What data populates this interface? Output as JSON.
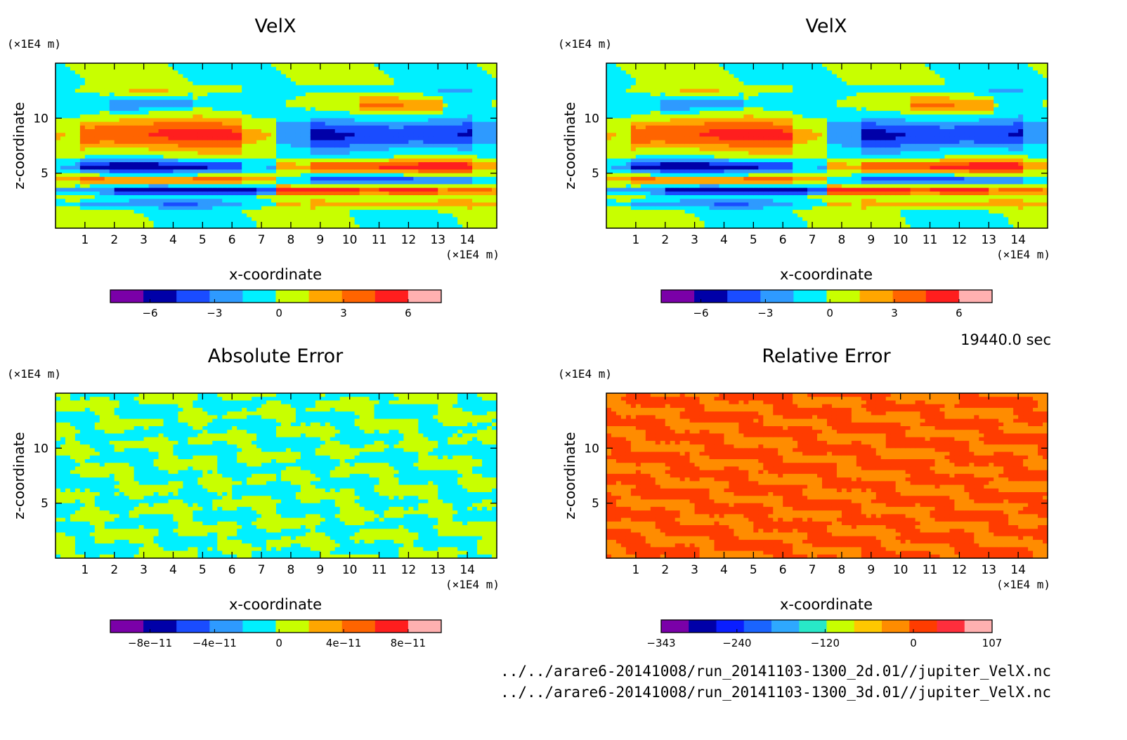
{
  "units_label": "(×1E4 m)",
  "time_label": "19440.0 sec",
  "file_paths": [
    "../../arare6-20141008/run_20141103-1300_2d.01//jupiter_VelX.nc",
    "../../arare6-20141008/run_20141103-1300_3d.01//jupiter_VelX.nc"
  ],
  "chart_data": [
    {
      "type": "heatmap",
      "title": "VelX",
      "xlabel": "x-coordinate",
      "ylabel": "z-coordinate",
      "xlim": [
        0,
        15
      ],
      "ylim": [
        0,
        15
      ],
      "x_ticks": [
        1,
        2,
        3,
        4,
        5,
        6,
        7,
        8,
        9,
        10,
        11,
        12,
        13,
        14
      ],
      "y_ticks": [
        5,
        10
      ],
      "colorbar": {
        "colors": [
          "#7a00a8",
          "#0000a8",
          "#1a4cff",
          "#2e9aff",
          "#00f0ff",
          "#c8ff00",
          "#ffa600",
          "#ff6400",
          "#ff1e1e",
          "#ffb0b0"
        ],
        "tick_values": [
          -6,
          -3,
          0,
          3,
          6
        ],
        "tick_labels": [
          "−6",
          "−3",
          "0",
          "3",
          "6"
        ]
      }
    },
    {
      "type": "heatmap",
      "title": "VelX",
      "xlabel": "x-coordinate",
      "ylabel": "z-coordinate",
      "xlim": [
        0,
        15
      ],
      "ylim": [
        0,
        15
      ],
      "x_ticks": [
        1,
        2,
        3,
        4,
        5,
        6,
        7,
        8,
        9,
        10,
        11,
        12,
        13,
        14
      ],
      "y_ticks": [
        5,
        10
      ],
      "colorbar": {
        "colors": [
          "#7a00a8",
          "#0000a8",
          "#1a4cff",
          "#2e9aff",
          "#00f0ff",
          "#c8ff00",
          "#ffa600",
          "#ff6400",
          "#ff1e1e",
          "#ffb0b0"
        ],
        "tick_values": [
          -6,
          -3,
          0,
          3,
          6
        ],
        "tick_labels": [
          "−6",
          "−3",
          "0",
          "3",
          "6"
        ]
      }
    },
    {
      "type": "heatmap",
      "title": "Absolute Error",
      "xlabel": "x-coordinate",
      "ylabel": "z-coordinate",
      "xlim": [
        0,
        15
      ],
      "ylim": [
        0,
        15
      ],
      "x_ticks": [
        1,
        2,
        3,
        4,
        5,
        6,
        7,
        8,
        9,
        10,
        11,
        12,
        13,
        14
      ],
      "y_ticks": [
        5,
        10
      ],
      "colorbar": {
        "colors": [
          "#7a00a8",
          "#0000a8",
          "#1a4cff",
          "#2e9aff",
          "#00f0ff",
          "#c8ff00",
          "#ffa600",
          "#ff6400",
          "#ff1e1e",
          "#ffb0b0"
        ],
        "tick_values": [
          -8e-11,
          -4e-11,
          0,
          4e-11,
          8e-11
        ],
        "tick_labels": [
          "−8e−11",
          "−4e−11",
          "0",
          "4e−11",
          "8e−11"
        ]
      }
    },
    {
      "type": "heatmap",
      "title": "Relative Error",
      "xlabel": "x-coordinate",
      "ylabel": "z-coordinate",
      "xlim": [
        0,
        15
      ],
      "ylim": [
        0,
        15
      ],
      "x_ticks": [
        1,
        2,
        3,
        4,
        5,
        6,
        7,
        8,
        9,
        10,
        11,
        12,
        13,
        14
      ],
      "y_ticks": [
        5,
        10
      ],
      "colorbar": {
        "colors": [
          "#7a00a8",
          "#0000a8",
          "#0a1eff",
          "#1a64ff",
          "#2ea8ff",
          "#28e8c8",
          "#c8ff00",
          "#ffc800",
          "#ff8c00",
          "#ff3c00",
          "#ff2e3c",
          "#ffb0b0"
        ],
        "tick_values": [
          -343,
          -240,
          -120,
          0,
          107
        ],
        "tick_labels": [
          "−343",
          "−240",
          "−120",
          "0",
          "107"
        ]
      }
    }
  ]
}
